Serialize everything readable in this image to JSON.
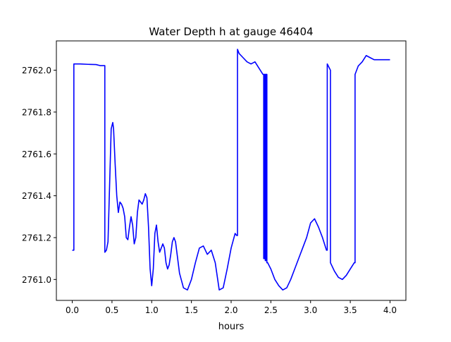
{
  "colors": {
    "series_line": "#0000ff",
    "axes": "#000000",
    "background": "#ffffff"
  },
  "chart_data": {
    "type": "line",
    "title": "Water Depth h at gauge 46404",
    "xlabel": "hours",
    "ylabel": "",
    "xlim": [
      -0.2,
      4.2
    ],
    "ylim": [
      2760.9,
      2762.14
    ],
    "xticks": [
      0.0,
      0.5,
      1.0,
      1.5,
      2.0,
      2.5,
      3.0,
      3.5,
      4.0
    ],
    "xtick_labels": [
      "0.0",
      "0.5",
      "1.0",
      "1.5",
      "2.0",
      "2.5",
      "3.0",
      "3.5",
      "4.0"
    ],
    "yticks": [
      2761.0,
      2761.2,
      2761.4,
      2761.6,
      2761.8,
      2762.0
    ],
    "ytick_labels": [
      "2761.0",
      "2761.2",
      "2761.4",
      "2761.6",
      "2761.8",
      "2762.0"
    ],
    "grid": false,
    "legend": "none",
    "series": [
      {
        "x": [
          0.0,
          0.02,
          0.02,
          0.1,
          0.2,
          0.3,
          0.35,
          0.41,
          0.41,
          0.43,
          0.45,
          0.47,
          0.49,
          0.51,
          0.52,
          0.54,
          0.56,
          0.58,
          0.6,
          0.62,
          0.64,
          0.66,
          0.68,
          0.7,
          0.72,
          0.74,
          0.76,
          0.78,
          0.8,
          0.82,
          0.84,
          0.86,
          0.88,
          0.9,
          0.92,
          0.94,
          0.96,
          0.98,
          1.0,
          1.02,
          1.04,
          1.06,
          1.08,
          1.1,
          1.12,
          1.14,
          1.16,
          1.18,
          1.2,
          1.22,
          1.24,
          1.26,
          1.28,
          1.3,
          1.32,
          1.35,
          1.4,
          1.45,
          1.5,
          1.55,
          1.6,
          1.65,
          1.7,
          1.75,
          1.8,
          1.85,
          1.9,
          1.95,
          2.0,
          2.05,
          2.07,
          2.08,
          2.08,
          2.1,
          2.15,
          2.2,
          2.25,
          2.3,
          2.35,
          2.4,
          2.41,
          2.41,
          2.42,
          2.42,
          2.43,
          2.43,
          2.44,
          2.44,
          2.45,
          2.45,
          2.46,
          2.46,
          2.5,
          2.55,
          2.6,
          2.65,
          2.7,
          2.75,
          2.8,
          2.85,
          2.9,
          2.95,
          3.0,
          3.05,
          3.1,
          3.15,
          3.2,
          3.21,
          3.21,
          3.25,
          3.25,
          3.3,
          3.35,
          3.4,
          3.45,
          3.5,
          3.55,
          3.56,
          3.56,
          3.6,
          3.65,
          3.7,
          3.75,
          3.8,
          3.85,
          3.9,
          4.0
        ],
        "y": [
          2761.14,
          2761.14,
          2762.03,
          2762.03,
          2762.028,
          2762.027,
          2762.022,
          2762.022,
          2761.13,
          2761.14,
          2761.18,
          2761.45,
          2761.72,
          2761.75,
          2761.72,
          2761.55,
          2761.4,
          2761.32,
          2761.37,
          2761.36,
          2761.34,
          2761.3,
          2761.2,
          2761.19,
          2761.25,
          2761.3,
          2761.26,
          2761.17,
          2761.2,
          2761.32,
          2761.38,
          2761.37,
          2761.36,
          2761.38,
          2761.41,
          2761.39,
          2761.25,
          2761.05,
          2760.97,
          2761.05,
          2761.22,
          2761.26,
          2761.18,
          2761.13,
          2761.15,
          2761.17,
          2761.15,
          2761.08,
          2761.05,
          2761.07,
          2761.12,
          2761.18,
          2761.2,
          2761.18,
          2761.12,
          2761.03,
          2760.96,
          2760.95,
          2761.0,
          2761.08,
          2761.15,
          2761.16,
          2761.12,
          2761.14,
          2761.08,
          2760.95,
          2760.96,
          2761.05,
          2761.15,
          2761.22,
          2761.21,
          2761.21,
          2762.1,
          2762.08,
          2762.06,
          2762.04,
          2762.03,
          2762.04,
          2762.01,
          2761.98,
          2761.98,
          2761.1,
          2761.1,
          2761.98,
          2761.98,
          2761.09,
          2761.09,
          2761.98,
          2761.98,
          2761.08,
          2761.08,
          2761.08,
          2761.05,
          2761.0,
          2760.97,
          2760.95,
          2760.96,
          2761.0,
          2761.05,
          2761.1,
          2761.15,
          2761.2,
          2761.27,
          2761.29,
          2761.25,
          2761.2,
          2761.14,
          2761.14,
          2762.03,
          2762.0,
          2761.08,
          2761.04,
          2761.01,
          2761.0,
          2761.02,
          2761.05,
          2761.08,
          2761.08,
          2761.98,
          2762.02,
          2762.04,
          2762.07,
          2762.06,
          2762.05,
          2762.05,
          2762.05,
          2762.05
        ]
      }
    ]
  }
}
